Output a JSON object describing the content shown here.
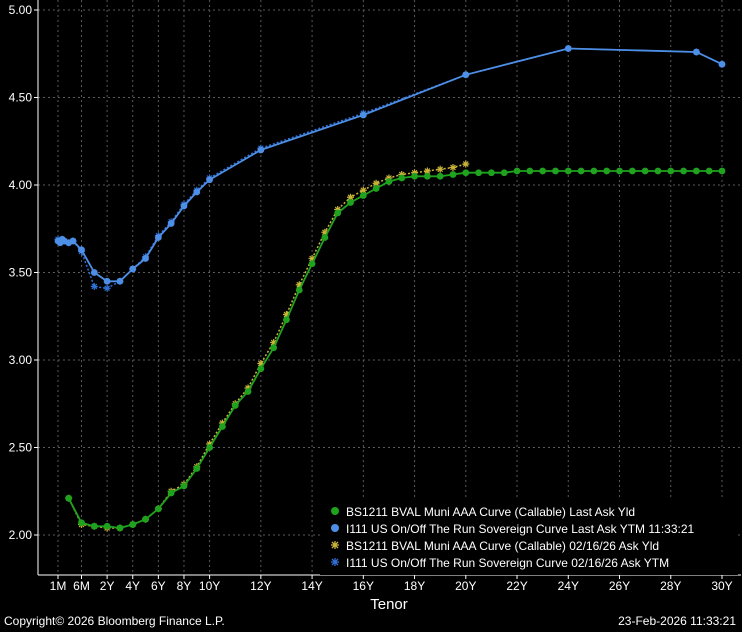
{
  "footer": {
    "copyright": "Copyright© 2026 Bloomberg Finance L.P.",
    "timestamp": "23-Feb-2026 11:33:21"
  },
  "chart_data": {
    "type": "line",
    "xlabel": "Tenor",
    "ylabel": "",
    "ylim": [
      1.76,
      5.0
    ],
    "xlim": [
      0,
      30.67
    ],
    "grid": true,
    "legend_position": "bottom-right",
    "y_ticks": [
      {
        "value": 2.0,
        "label": "2.00"
      },
      {
        "value": 2.5,
        "label": "2.50"
      },
      {
        "value": 3.0,
        "label": "3.00"
      },
      {
        "value": 3.5,
        "label": "3.50"
      },
      {
        "value": 4.0,
        "label": "4.00"
      },
      {
        "value": 4.5,
        "label": "4.50"
      },
      {
        "value": 5.0,
        "label": "5.00"
      }
    ],
    "x_ticks": [
      {
        "value": 0.083,
        "label": "1M"
      },
      {
        "value": 1,
        "label": "6M"
      },
      {
        "value": 2,
        "label": "2Y"
      },
      {
        "value": 3,
        "label": "4Y"
      },
      {
        "value": 4,
        "label": "6Y"
      },
      {
        "value": 5,
        "label": "8Y"
      },
      {
        "value": 6,
        "label": "10Y"
      },
      {
        "value": 8,
        "label": "12Y"
      },
      {
        "value": 10,
        "label": "14Y"
      },
      {
        "value": 12,
        "label": "16Y"
      },
      {
        "value": 14,
        "label": "18Y"
      },
      {
        "value": 16,
        "label": "20Y"
      },
      {
        "value": 18,
        "label": "22Y"
      },
      {
        "value": 20,
        "label": "24Y"
      },
      {
        "value": 22,
        "label": "26Y"
      },
      {
        "value": 24,
        "label": "28Y"
      },
      {
        "value": 26,
        "label": "30Y"
      }
    ],
    "series": [
      {
        "name": "BS1211 BVAL Muni AAA Curve (Callable) Last Ask Yld",
        "color": "#1fa31f",
        "marker": "dot",
        "line": "solid",
        "x": [
          0.5,
          1,
          1.5,
          2,
          2.5,
          3,
          3.5,
          4,
          4.5,
          5,
          5.5,
          6,
          6.5,
          7,
          7.5,
          8,
          8.5,
          9,
          9.5,
          10,
          10.5,
          11,
          11.5,
          12,
          12.5,
          13,
          13.5,
          14,
          14.5,
          15,
          15.5,
          16,
          16.5,
          17,
          17.5,
          18,
          18.5,
          19,
          19.5,
          20,
          20.5,
          21,
          21.5,
          22,
          22.5,
          23,
          23.5,
          24,
          24.5,
          25,
          25.5,
          26
        ],
        "values": [
          2.21,
          2.07,
          2.05,
          2.05,
          2.04,
          2.06,
          2.09,
          2.15,
          2.24,
          2.28,
          2.38,
          2.5,
          2.62,
          2.74,
          2.82,
          2.95,
          3.07,
          3.23,
          3.4,
          3.55,
          3.7,
          3.84,
          3.9,
          3.94,
          3.98,
          4.02,
          4.04,
          4.05,
          4.05,
          4.05,
          4.06,
          4.07,
          4.07,
          4.07,
          4.07,
          4.08,
          4.08,
          4.08,
          4.08,
          4.08,
          4.08,
          4.08,
          4.08,
          4.08,
          4.08,
          4.08,
          4.08,
          4.08,
          4.08,
          4.08,
          4.08,
          4.08
        ]
      },
      {
        "name": "I111 US On/Off The Run Sovereign Curve Last Ask YTM 11:33:21",
        "color": "#4d8fe6",
        "marker": "dot",
        "line": "solid",
        "x": [
          0.083,
          0.17,
          0.25,
          0.33,
          0.5,
          0.67,
          1,
          1.5,
          2,
          2.5,
          3,
          3.5,
          4,
          4.5,
          5,
          5.5,
          6,
          8,
          12,
          16,
          20,
          25,
          26
        ],
        "values": [
          3.68,
          3.67,
          3.69,
          3.68,
          3.67,
          3.68,
          3.63,
          3.5,
          3.45,
          3.45,
          3.52,
          3.58,
          3.7,
          3.78,
          3.88,
          3.96,
          4.03,
          4.2,
          4.4,
          4.63,
          4.78,
          4.76,
          4.69
        ]
      },
      {
        "name": "BS1211 BVAL Muni AAA Curve (Callable) 02/16/26 Ask Yld",
        "color": "#c9b43a",
        "marker": "asterisk",
        "line": "dotted",
        "x": [
          0.5,
          1,
          1.5,
          2,
          2.5,
          3,
          3.5,
          4,
          4.5,
          5,
          5.5,
          6,
          6.5,
          7,
          7.5,
          8,
          8.5,
          9,
          9.5,
          10,
          10.5,
          11,
          11.5,
          12,
          12.5,
          13,
          13.5,
          14,
          14.5,
          15,
          15.5,
          16
        ],
        "values": [
          2.21,
          2.06,
          2.05,
          2.04,
          2.04,
          2.06,
          2.09,
          2.15,
          2.25,
          2.29,
          2.39,
          2.52,
          2.64,
          2.75,
          2.84,
          2.98,
          3.1,
          3.26,
          3.43,
          3.58,
          3.73,
          3.86,
          3.93,
          3.97,
          4.01,
          4.04,
          4.06,
          4.07,
          4.08,
          4.09,
          4.1,
          4.12
        ]
      },
      {
        "name": "I111 US On/Off The Run Sovereign Curve 02/16/26 Ask YTM",
        "color": "#2f6fd6",
        "marker": "asterisk",
        "line": "dotted",
        "x": [
          0.083,
          0.17,
          0.25,
          0.33,
          0.5,
          0.67,
          1,
          1.5,
          2,
          2.5,
          3,
          3.5,
          4,
          4.5,
          5,
          5.5,
          6,
          8,
          12,
          16,
          20,
          25,
          26
        ],
        "values": [
          3.69,
          3.68,
          3.68,
          3.68,
          3.67,
          3.68,
          3.62,
          3.42,
          3.41,
          3.45,
          3.52,
          3.59,
          3.71,
          3.79,
          3.89,
          3.97,
          4.04,
          4.21,
          4.41,
          4.63,
          4.78,
          4.76,
          4.69
        ]
      }
    ]
  }
}
